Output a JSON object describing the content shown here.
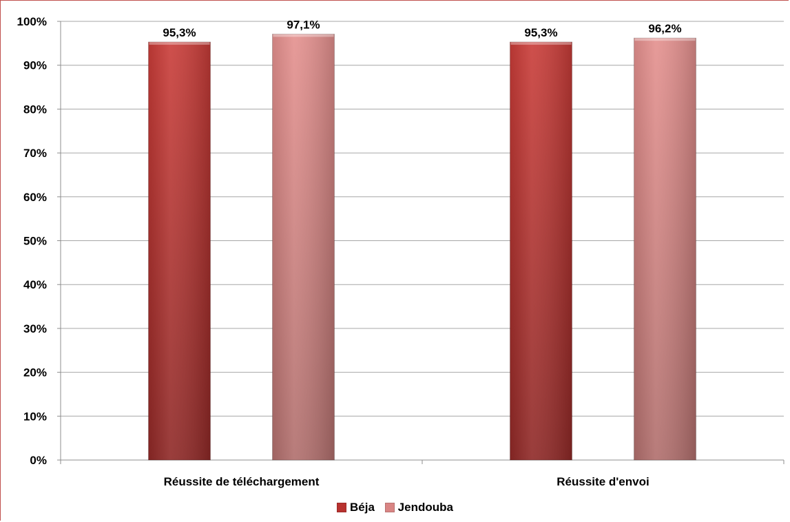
{
  "chart_data": {
    "type": "bar",
    "categories": [
      "Réussite de téléchargement",
      "Réussite d'envoi"
    ],
    "series": [
      {
        "name": "Béja",
        "values": [
          95.3,
          95.3
        ],
        "labels": [
          "95,3%",
          "95,3%"
        ],
        "color": "#b8322f"
      },
      {
        "name": "Jendouba",
        "values": [
          97.1,
          96.2
        ],
        "labels": [
          "97,1%",
          "96,2%"
        ],
        "color": "#d98584"
      }
    ],
    "yticks": [
      "0%",
      "10%",
      "20%",
      "30%",
      "40%",
      "50%",
      "60%",
      "70%",
      "80%",
      "90%",
      "100%"
    ],
    "ylim": [
      0,
      100
    ],
    "grid": true,
    "legend_position": "bottom",
    "frame_color": "#c0504d"
  }
}
